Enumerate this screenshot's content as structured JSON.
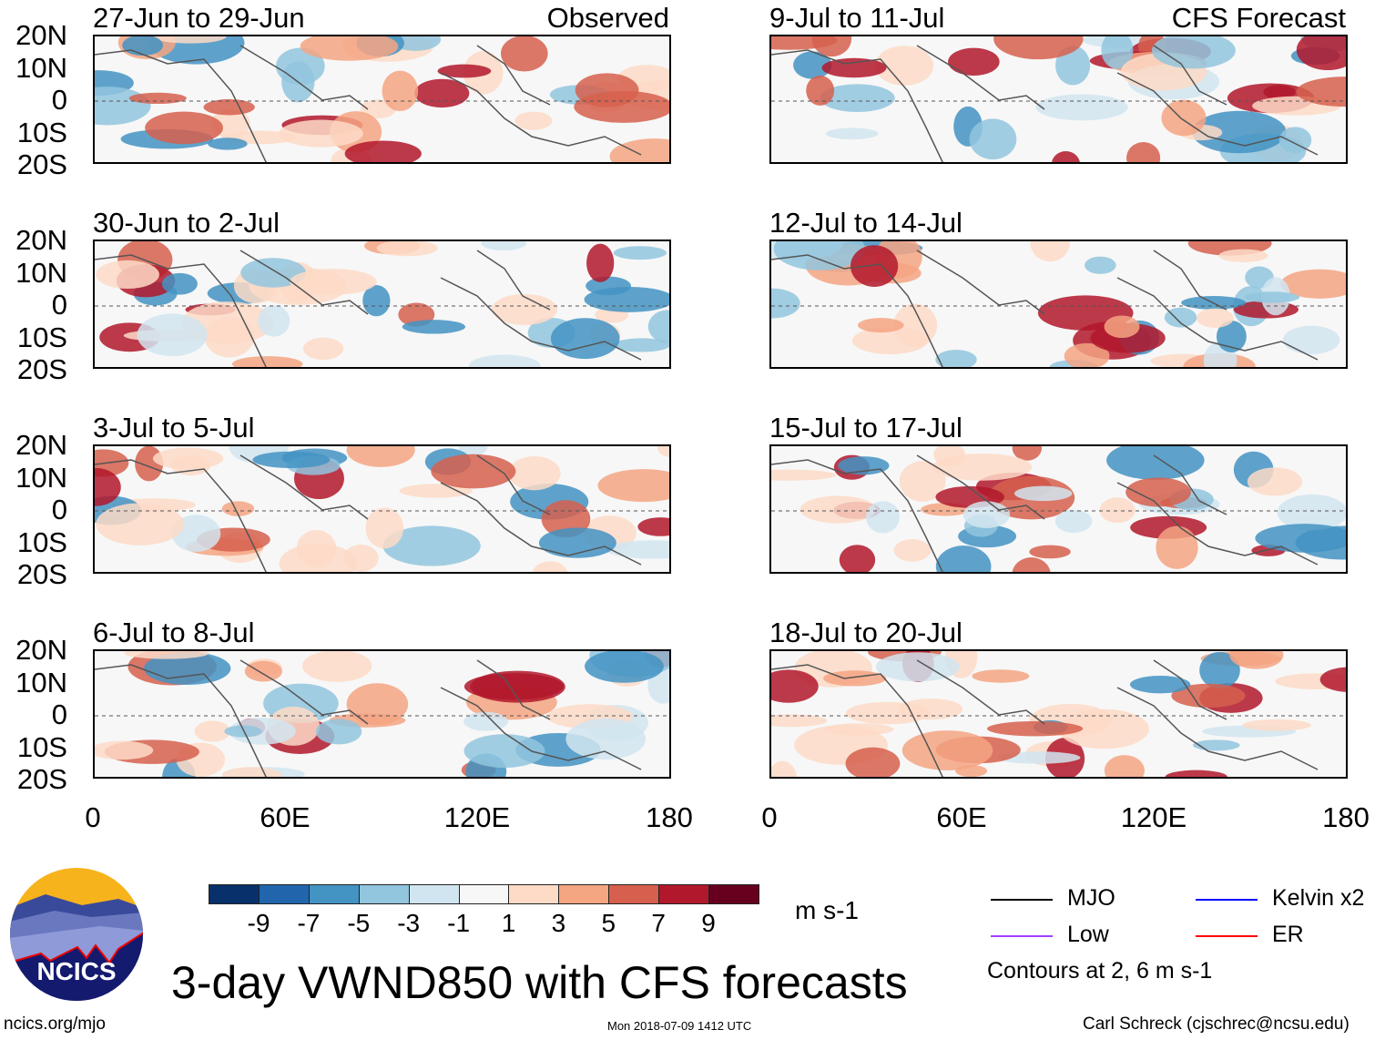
{
  "panels_left": [
    {
      "title": "27-Jun to 29-Jun",
      "tag": "Observed"
    },
    {
      "title": "30-Jun to 2-Jul",
      "tag": ""
    },
    {
      "title": "3-Jul to 5-Jul",
      "tag": ""
    },
    {
      "title": "6-Jul to 8-Jul",
      "tag": ""
    }
  ],
  "panels_right": [
    {
      "title": "9-Jul to 11-Jul",
      "tag": "CFS Forecast"
    },
    {
      "title": "12-Jul to 14-Jul",
      "tag": ""
    },
    {
      "title": "15-Jul to 17-Jul",
      "tag": ""
    },
    {
      "title": "18-Jul to 20-Jul",
      "tag": ""
    }
  ],
  "lat_labels": [
    "20N",
    "10N",
    "0",
    "10S",
    "20S"
  ],
  "lon_labels": [
    "0",
    "60E",
    "120E",
    "180"
  ],
  "colorbar": {
    "colors": [
      "#08306b",
      "#2166ac",
      "#4393c3",
      "#92c5de",
      "#d1e5f0",
      "#f7f7f7",
      "#fddbc7",
      "#f4a582",
      "#d6604d",
      "#b2182b",
      "#67001f"
    ],
    "labels": [
      "-9",
      "-7",
      "-5",
      "-3",
      "-1",
      "1",
      "3",
      "5",
      "7",
      "9"
    ],
    "units": "m s-1"
  },
  "legend": {
    "items": [
      {
        "label": "MJO",
        "color": "#000000"
      },
      {
        "label": "Kelvin x2",
        "color": "#0000ff"
      },
      {
        "label": "Low",
        "color": "#a040ff"
      },
      {
        "label": "ER",
        "color": "#ff0000"
      }
    ],
    "note": "Contours at 2, 6 m s-1"
  },
  "title": "3-day VWND850 with CFS forecasts",
  "logo_text": "NCICS",
  "url": "ncics.org/mjo",
  "timestamp": "Mon 2018-07-09 1412 UTC",
  "credit": "Carl Schreck (cjschrec@ncsu.edu)"
}
